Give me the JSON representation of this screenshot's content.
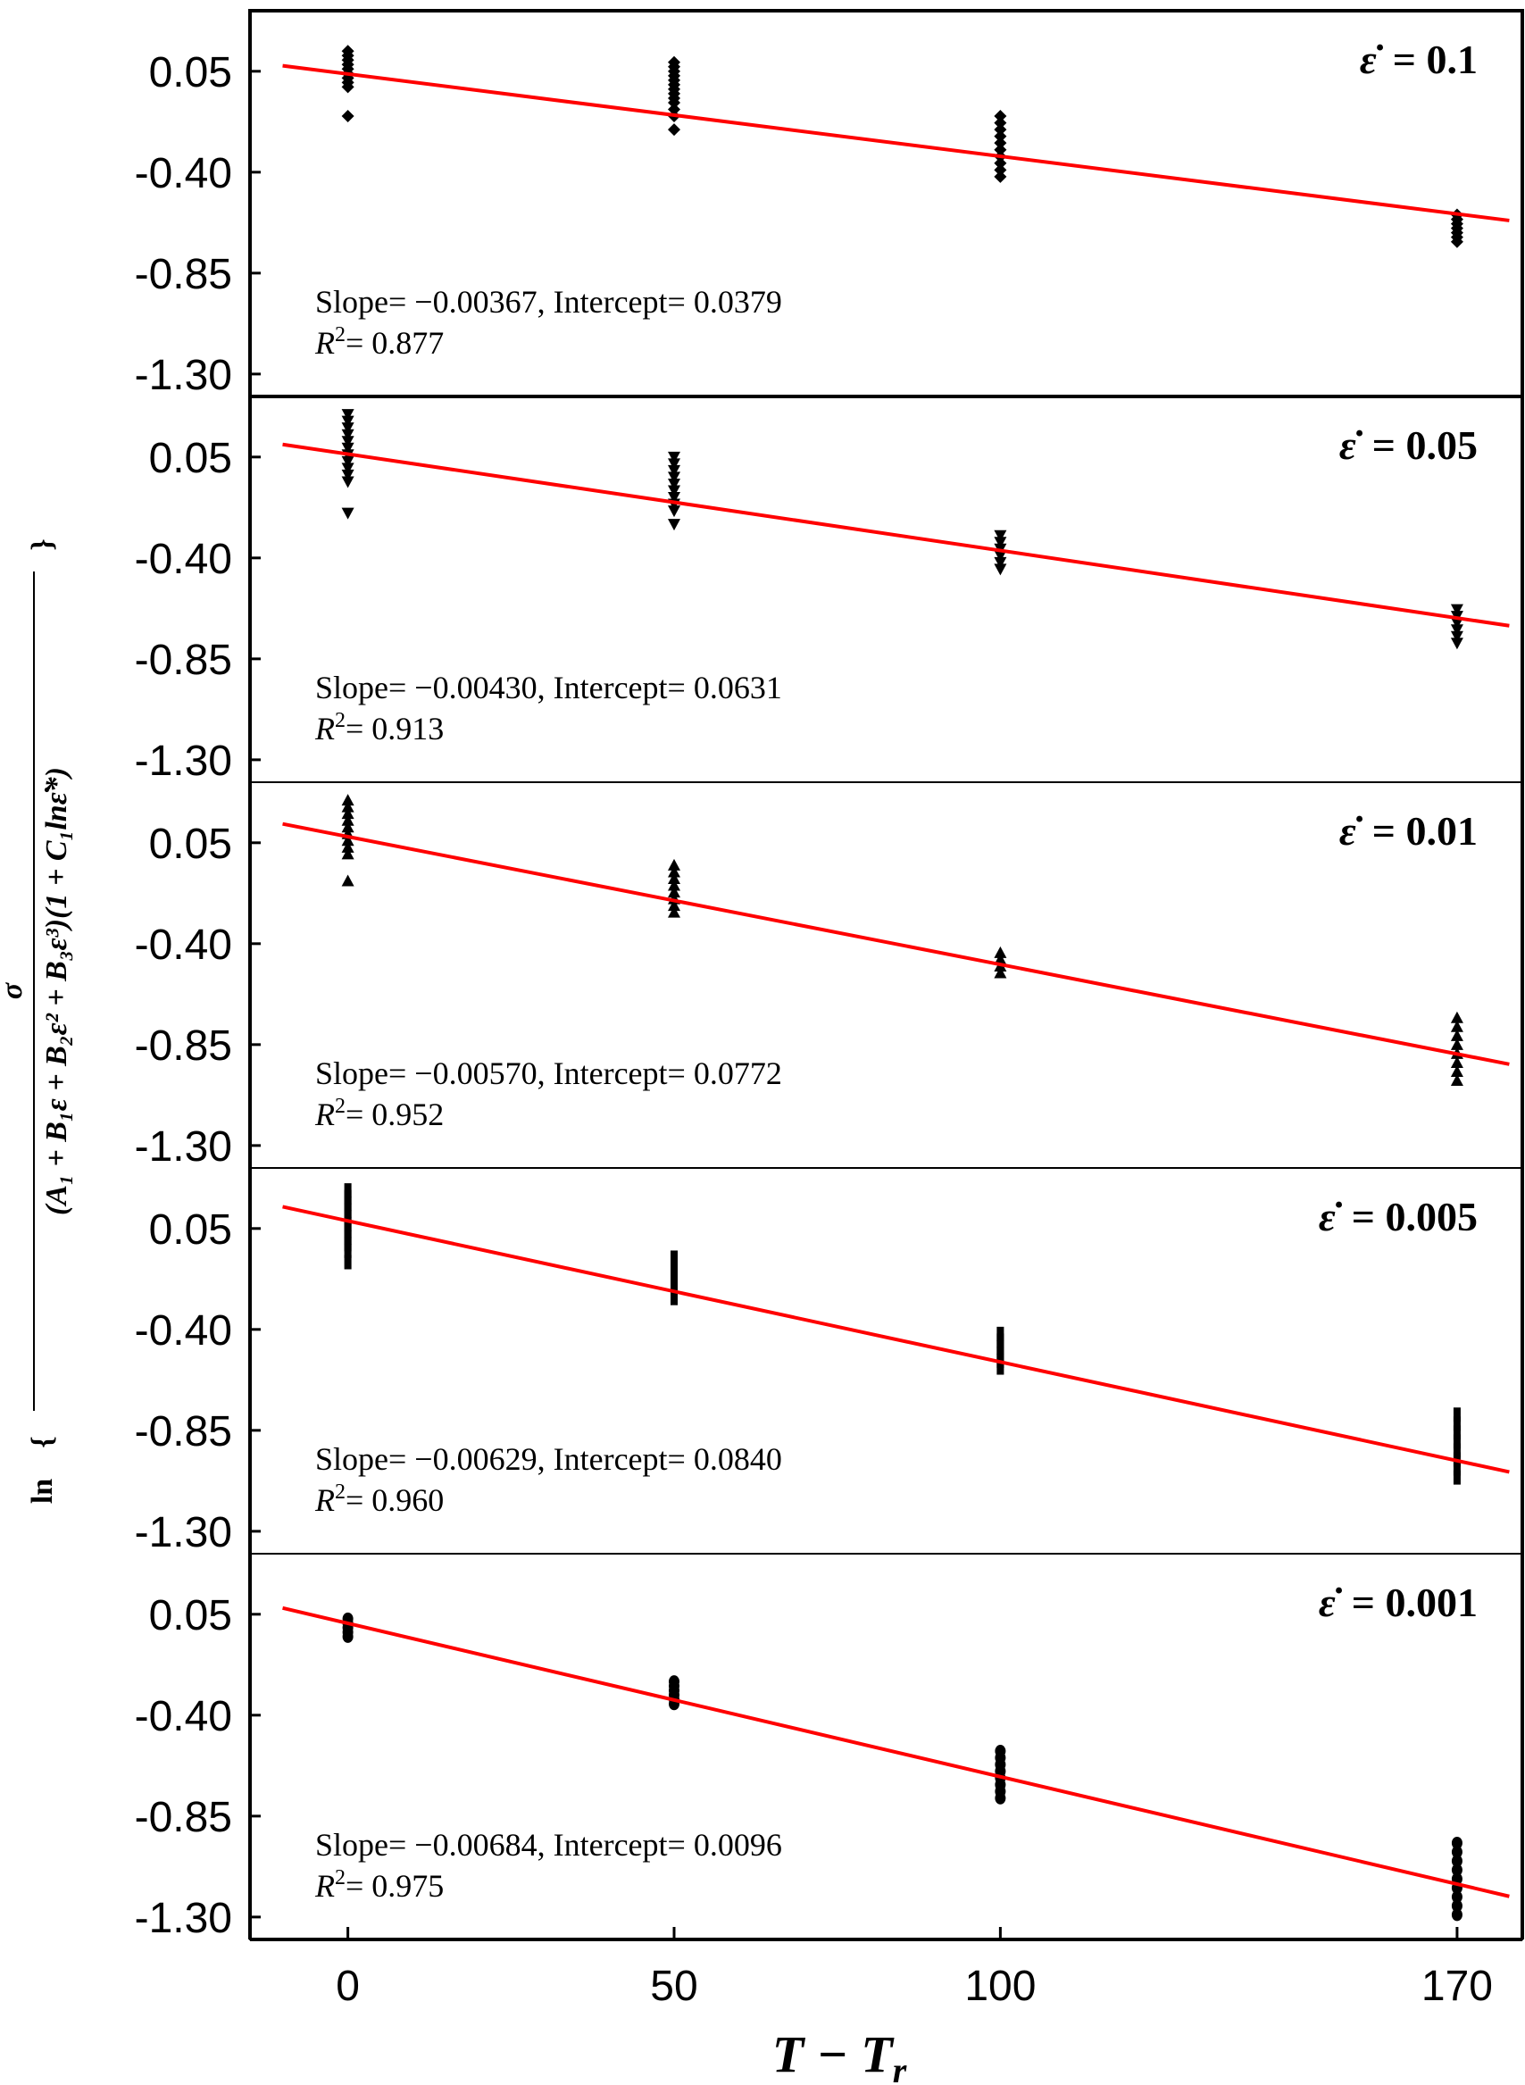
{
  "chart_data": {
    "type": "scatter",
    "xlabel": "T − T",
    "xlabel_subscript": "r",
    "ylabel": "ln{ σ / ((A₁ + B₁ε + B₂ε² + B₃ε³)(1 + C₁lnε̇*)) }",
    "ylabel_prefix": "ln",
    "ylabel_numerator": "σ",
    "ylabel_denominator": "(A₁ + B₁ε + B₂ε² + B₃ε³)(1 + C₁lnε̇*)",
    "x_ticks": [
      "0",
      "50",
      "100",
      "170"
    ],
    "x_tick_values": [
      0,
      50,
      100,
      170
    ],
    "xlim": [
      -15,
      180
    ],
    "y_ticks": [
      "0.05",
      "-0.40",
      "-0.85",
      "-1.30"
    ],
    "y_tick_values": [
      0.05,
      -0.4,
      -0.85,
      -1.3
    ],
    "ylim": [
      -1.4,
      0.32
    ],
    "line_color": "#ff0000",
    "marker_color": "#000000",
    "panels": [
      {
        "rate_symbol": "ε̇",
        "rate_value": "= 0.1",
        "marker": "diamond",
        "slope": -0.00367,
        "intercept": 0.0379,
        "slope_label": "Slope= −0.00367, Intercept= 0.0379",
        "r2_label": "= 0.877",
        "points": [
          {
            "x": 0,
            "y": [
              0.14,
              0.12,
              0.1,
              0.08,
              0.06,
              0.04,
              0.02,
              0.0,
              -0.02,
              -0.15
            ]
          },
          {
            "x": 50,
            "y": [
              0.09,
              0.07,
              0.05,
              0.03,
              0.01,
              -0.01,
              -0.03,
              -0.05,
              -0.07,
              -0.09,
              -0.12,
              -0.15,
              -0.21
            ]
          },
          {
            "x": 100,
            "y": [
              -0.15,
              -0.18,
              -0.21,
              -0.24,
              -0.27,
              -0.3,
              -0.33,
              -0.36,
              -0.39,
              -0.42
            ]
          },
          {
            "x": 170,
            "y": [
              -0.59,
              -0.61,
              -0.63,
              -0.65,
              -0.67,
              -0.69,
              -0.71
            ]
          }
        ]
      },
      {
        "rate_symbol": "ε̇",
        "rate_value": "= 0.05",
        "marker": "triangle-down",
        "slope": -0.0043,
        "intercept": 0.0631,
        "slope_label": "Slope= −0.00430, Intercept= 0.0631",
        "r2_label": "= 0.913",
        "points": [
          {
            "x": 0,
            "y": [
              0.24,
              0.21,
              0.18,
              0.15,
              0.12,
              0.09,
              0.06,
              0.03,
              0.0,
              -0.03,
              -0.06,
              -0.2
            ]
          },
          {
            "x": 50,
            "y": [
              0.05,
              0.02,
              -0.01,
              -0.04,
              -0.07,
              -0.1,
              -0.13,
              -0.16,
              -0.19,
              -0.25
            ]
          },
          {
            "x": 100,
            "y": [
              -0.3,
              -0.33,
              -0.36,
              -0.39,
              -0.42,
              -0.45
            ]
          },
          {
            "x": 170,
            "y": [
              -0.63,
              -0.66,
              -0.69,
              -0.72,
              -0.75,
              -0.78
            ]
          }
        ]
      },
      {
        "rate_symbol": "ε̇",
        "rate_value": "= 0.01",
        "marker": "triangle-up",
        "slope": -0.0057,
        "intercept": 0.0772,
        "slope_label": "Slope= −0.00570, Intercept= 0.0772",
        "r2_label": "= 0.952",
        "points": [
          {
            "x": 0,
            "y": [
              0.24,
              0.21,
              0.18,
              0.15,
              0.12,
              0.09,
              0.06,
              0.03,
              0.0,
              -0.12
            ]
          },
          {
            "x": 50,
            "y": [
              -0.05,
              -0.08,
              -0.11,
              -0.14,
              -0.17,
              -0.2,
              -0.23,
              -0.26
            ]
          },
          {
            "x": 100,
            "y": [
              -0.44,
              -0.47,
              -0.5,
              -0.53
            ]
          },
          {
            "x": 170,
            "y": [
              -0.73,
              -0.77,
              -0.81,
              -0.85,
              -0.89,
              -0.93,
              -0.97,
              -1.01
            ]
          }
        ]
      },
      {
        "rate_symbol": "ε̇",
        "rate_value": "= 0.005",
        "marker": "bar",
        "slope": -0.00629,
        "intercept": 0.084,
        "slope_label": "Slope= −0.00629, Intercept= 0.0840",
        "r2_label": "= 0.960",
        "points": [
          {
            "x": 0,
            "y": [
              0.22,
              0.19,
              0.16,
              0.13,
              0.1,
              0.07,
              0.04,
              0.01,
              -0.02,
              -0.05,
              -0.1
            ]
          },
          {
            "x": 50,
            "y": [
              -0.08,
              -0.11,
              -0.14,
              -0.17,
              -0.2,
              -0.23,
              -0.26
            ]
          },
          {
            "x": 100,
            "y": [
              -0.42,
              -0.45,
              -0.48,
              -0.51,
              -0.54,
              -0.57
            ]
          },
          {
            "x": 170,
            "y": [
              -0.78,
              -0.82,
              -0.86,
              -0.9,
              -0.94,
              -0.98,
              -1.02,
              -1.06
            ]
          }
        ]
      },
      {
        "rate_symbol": "ε̇",
        "rate_value": "= 0.001",
        "marker": "circle",
        "slope": -0.00684,
        "intercept": 0.0096,
        "slope_label": "Slope= −0.00684, Intercept= 0.0096",
        "r2_label": "= 0.975",
        "points": [
          {
            "x": 0,
            "y": [
              0.03,
              0.01,
              -0.01,
              -0.03,
              -0.05
            ]
          },
          {
            "x": 50,
            "y": [
              -0.25,
              -0.27,
              -0.29,
              -0.31,
              -0.33,
              -0.35
            ]
          },
          {
            "x": 100,
            "y": [
              -0.56,
              -0.59,
              -0.62,
              -0.65,
              -0.68,
              -0.71,
              -0.74,
              -0.77
            ]
          },
          {
            "x": 170,
            "y": [
              -0.97,
              -1.01,
              -1.05,
              -1.09,
              -1.13,
              -1.17,
              -1.21,
              -1.25,
              -1.29
            ]
          }
        ]
      }
    ]
  }
}
